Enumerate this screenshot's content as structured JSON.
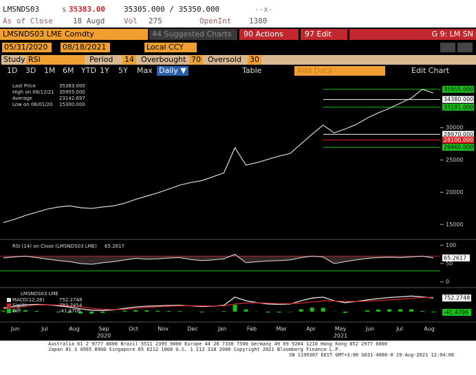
{
  "header": {
    "ticker": "LMSNDS03",
    "prefix": "s",
    "last": "35383.00",
    "bid_ask": "35305.000 / 35350.000",
    "flags": "--x-",
    "close_label": "As of Close",
    "close_date": "18 Augd",
    "vol_label": "Vol",
    "vol": "275",
    "oi_label": "OpenInt",
    "oi": "1380"
  },
  "toolbar": {
    "security": "LMSNDS03 LME Comdty",
    "suggested": "44 Suggested Charts",
    "actions": "90 Actions",
    "edit": "97 Edit",
    "page": "G 9: LM SN",
    "start_date": "05/31/2020",
    "end_date": "08/18/2021",
    "currency": "Local CCY",
    "periods": [
      "1D",
      "3D",
      "1M",
      "6M",
      "YTD",
      "1Y",
      "5Y",
      "Max"
    ],
    "frequency": "Daily ▼",
    "table": "Table",
    "add_data": "Add Data",
    "edit_chart": "Edit Chart"
  },
  "study": {
    "label": "Study",
    "name": "RSI",
    "period_label": "Period",
    "period": 14,
    "overbought_label": "Overbought",
    "overbought": 70,
    "oversold_label": "Oversold",
    "oversold": 30
  },
  "chart_data": [
    {
      "type": "line",
      "legend": [
        {
          "label": "Last Price",
          "value": "35383.000"
        },
        {
          "label": "High on 08/12/21",
          "value": "35955.000"
        },
        {
          "label": "Average",
          "value": "23142.697"
        },
        {
          "label": "Low on 06/01/20",
          "value": "15300.000"
        }
      ],
      "series": [
        {
          "name": "Last Price",
          "color": "#d8d8d8",
          "values": [
            15300,
            15800,
            16400,
            16900,
            17400,
            17700,
            17900,
            17600,
            17500,
            17700,
            17900,
            18300,
            18900,
            19400,
            19900,
            20500,
            21100,
            21500,
            21800,
            22400,
            23000,
            26900,
            24200,
            24600,
            25100,
            25600,
            26000,
            27500,
            29000,
            30400,
            29200,
            29800,
            30500,
            31500,
            32300,
            33000,
            33800,
            34600,
            35955,
            35383
          ]
        }
      ],
      "ylim": [
        13000,
        37000
      ],
      "yticks": [
        15000,
        20000,
        25000,
        30000
      ],
      "ref_lines": [
        {
          "value": 35955,
          "label": "35955.000",
          "color": "#19c219"
        },
        {
          "value": 34380,
          "label": "34380.000",
          "color": "#ffffff"
        },
        {
          "value": 33181,
          "label": "33181.000",
          "color": "#19c219"
        },
        {
          "value": 28970,
          "label": "28970.000",
          "color": "#ffffff"
        },
        {
          "value": 28100,
          "label": "28100.000",
          "color": "#e02020"
        },
        {
          "value": 26960,
          "label": "26960.000",
          "color": "#19c219"
        }
      ]
    },
    {
      "type": "area",
      "title": "RSI (14) on Close (LMSNDS03 LME)",
      "last_label": "65.2617",
      "series": [
        {
          "name": "RSI",
          "color": "#e6e6e6",
          "values": [
            65,
            68,
            70,
            66,
            62,
            58,
            55,
            50,
            48,
            52,
            55,
            60,
            64,
            62,
            63,
            65,
            66,
            61,
            58,
            60,
            63,
            75,
            52,
            55,
            57,
            58,
            60,
            66,
            70,
            68,
            50,
            55,
            60,
            64,
            66,
            67,
            66,
            68,
            70,
            65.2617
          ]
        }
      ],
      "ylim": [
        -8,
        108
      ],
      "yticks": [
        0,
        50,
        100
      ]
    },
    {
      "type": "macd",
      "title": "LMSNDS03 LME",
      "series": [
        {
          "name": "MACD(12,26)",
          "label": "752.2748",
          "color": "#e6e6e6",
          "values": [
            200,
            300,
            380,
            400,
            380,
            320,
            250,
            150,
            80,
            60,
            100,
            180,
            260,
            300,
            320,
            340,
            350,
            320,
            280,
            300,
            350,
            800,
            600,
            500,
            420,
            400,
            420,
            600,
            750,
            800,
            600,
            500,
            560,
            650,
            720,
            780,
            820,
            860,
            820,
            752.2748
          ]
        },
        {
          "name": "Sig(9)",
          "label": "793.7454",
          "color": "#d02828",
          "values": [
            150,
            220,
            300,
            360,
            380,
            360,
            320,
            260,
            190,
            130,
            110,
            130,
            180,
            230,
            270,
            300,
            320,
            330,
            320,
            310,
            320,
            420,
            480,
            490,
            470,
            450,
            440,
            470,
            530,
            590,
            590,
            570,
            560,
            580,
            610,
            650,
            690,
            730,
            780,
            793.7454
          ]
        },
        {
          "name": "Diff",
          "label": "-41.4706",
          "color": "#19c219",
          "values": [
            50,
            80,
            80,
            40,
            0,
            -40,
            -70,
            -110,
            -110,
            -70,
            -10,
            50,
            80,
            70,
            50,
            40,
            30,
            -10,
            -40,
            -10,
            30,
            380,
            120,
            10,
            -50,
            -50,
            -20,
            130,
            220,
            210,
            10,
            -70,
            0,
            70,
            110,
            130,
            130,
            130,
            40,
            -41.4706
          ]
        }
      ],
      "ylim": [
        -500,
        1100
      ]
    }
  ],
  "x_axis": {
    "months": [
      "Jun",
      "Jul",
      "Aug",
      "Sep",
      "Oct",
      "Nov",
      "Dec",
      "Jan",
      "Feb",
      "Mar",
      "Apr",
      "May",
      "Jun",
      "Jul",
      "Aug"
    ],
    "years": [
      null,
      null,
      null,
      "2020",
      null,
      null,
      null,
      null,
      null,
      null,
      null,
      "2021",
      null,
      null,
      null
    ]
  },
  "footer": [
    "Australia 61 2 9777 8600 Brazil 5511 2395 9000 Europe 44 20 7330 7500 Germany 49 69 9204 1210 Hong Kong 852 2977 6000",
    "Japan 81 3 4565 8900      Singapore 65 6212 1000      U.S. 1 212 318 2000      Copyright 2021 Bloomberg Finance L.P.",
    "SN 1199307 EEST GMT+3:00 G631-4086-0 19-Aug-2021 12:04:06"
  ]
}
